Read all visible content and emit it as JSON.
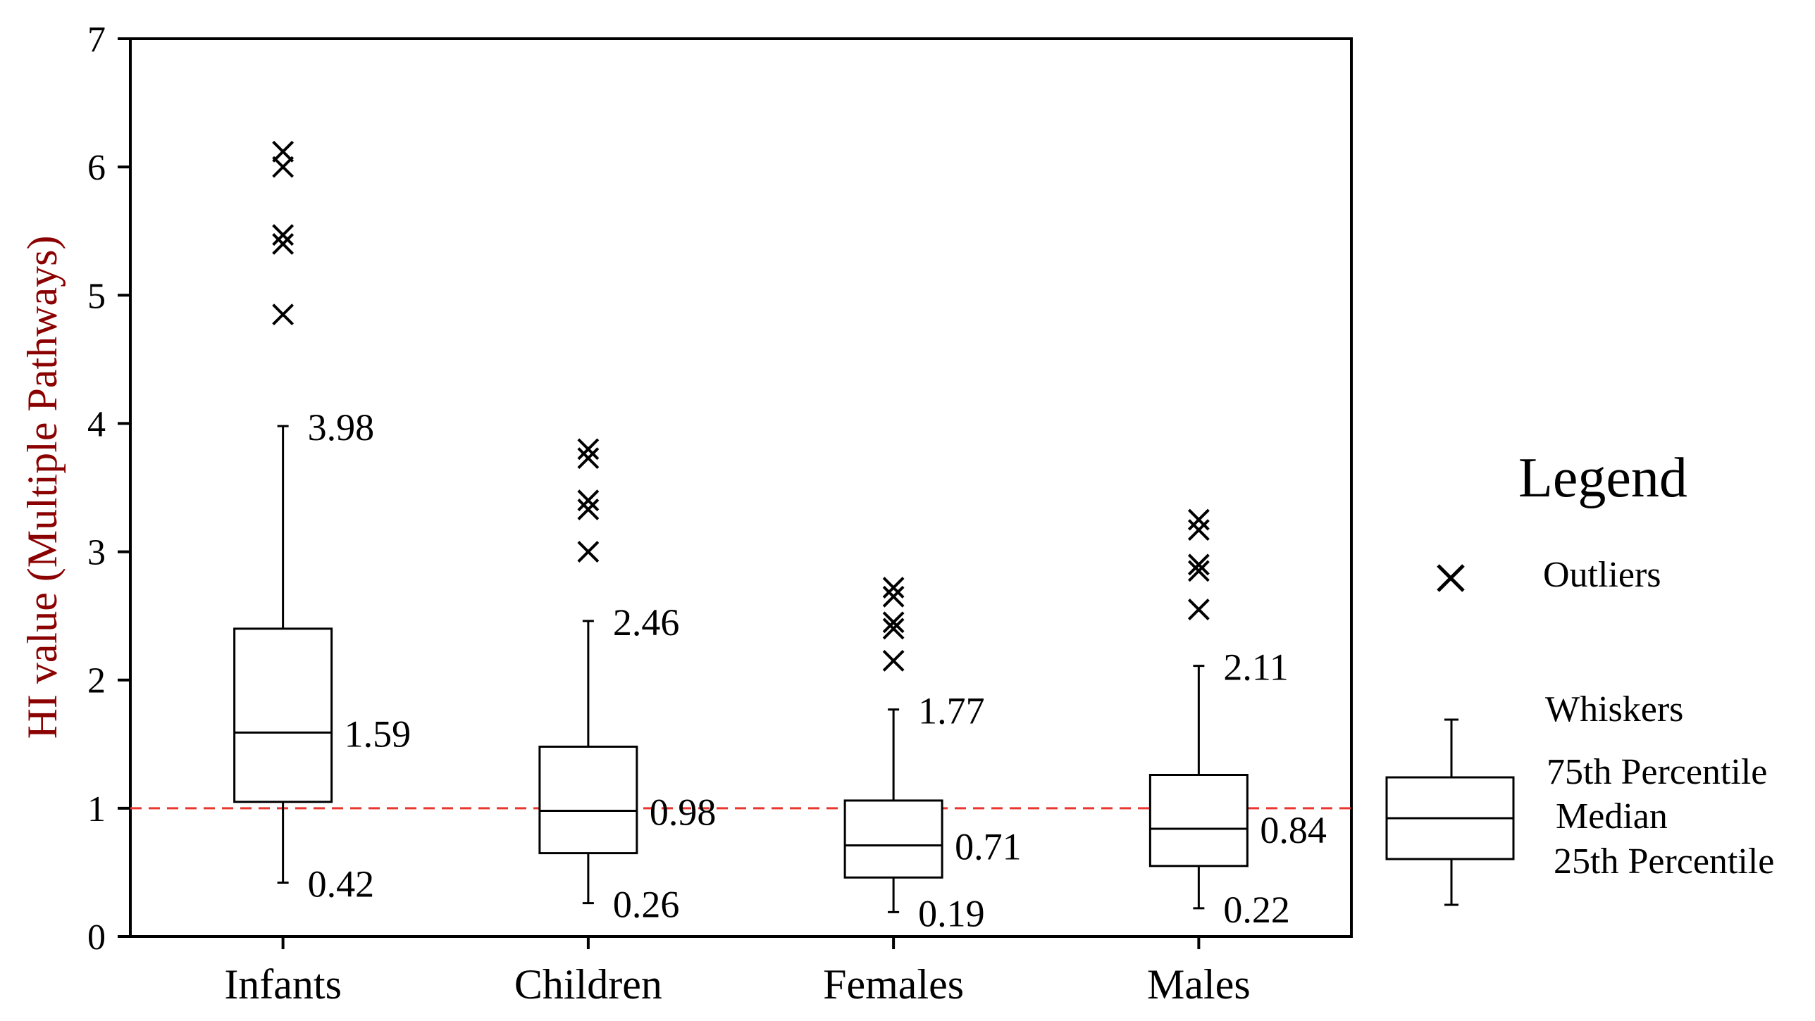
{
  "chart_data": {
    "type": "boxplot",
    "title": "",
    "xlabel": "",
    "ylabel": "HI value (Multiple Pathways)",
    "ylim": [
      0,
      7
    ],
    "yticks": [
      "0",
      "1",
      "2",
      "3",
      "4",
      "5",
      "6",
      "7"
    ],
    "grid": false,
    "reference_line": {
      "value": 1,
      "color": "#e8362e",
      "style": "dashed"
    },
    "categories": [
      {
        "name": "Infants",
        "whisker_low": 0.42,
        "q1": 1.05,
        "median": 1.59,
        "q3": 2.4,
        "whisker_high": 3.98,
        "label_low": "0.42",
        "label_median": "1.59",
        "label_high": "3.98",
        "outliers": [
          4.85,
          5.4,
          5.47,
          6.0,
          6.12
        ]
      },
      {
        "name": "Children",
        "whisker_low": 0.26,
        "q1": 0.65,
        "median": 0.98,
        "q3": 1.48,
        "whisker_high": 2.46,
        "label_low": "0.26",
        "label_median": "0.98",
        "label_high": "2.46",
        "outliers": [
          3.0,
          3.33,
          3.4,
          3.73,
          3.8
        ]
      },
      {
        "name": "Females",
        "whisker_low": 0.19,
        "q1": 0.46,
        "median": 0.71,
        "q3": 1.06,
        "whisker_high": 1.77,
        "label_low": "0.19",
        "label_median": "0.71",
        "label_high": "1.77",
        "outliers": [
          2.15,
          2.4,
          2.45,
          2.65,
          2.72
        ]
      },
      {
        "name": "Males",
        "whisker_low": 0.22,
        "q1": 0.55,
        "median": 0.84,
        "q3": 1.26,
        "whisker_high": 2.11,
        "label_low": "0.22",
        "label_median": "0.84",
        "label_high": "2.11",
        "outliers": [
          2.55,
          2.85,
          2.9,
          3.17,
          3.25
        ]
      }
    ],
    "legend": {
      "title": "Legend",
      "position": "right",
      "outliers_label": "Outliers",
      "whiskers_label": "Whiskers",
      "p75_label": "75th Percentile",
      "median_label": "Median",
      "p25_label": "25th Percentile"
    }
  }
}
